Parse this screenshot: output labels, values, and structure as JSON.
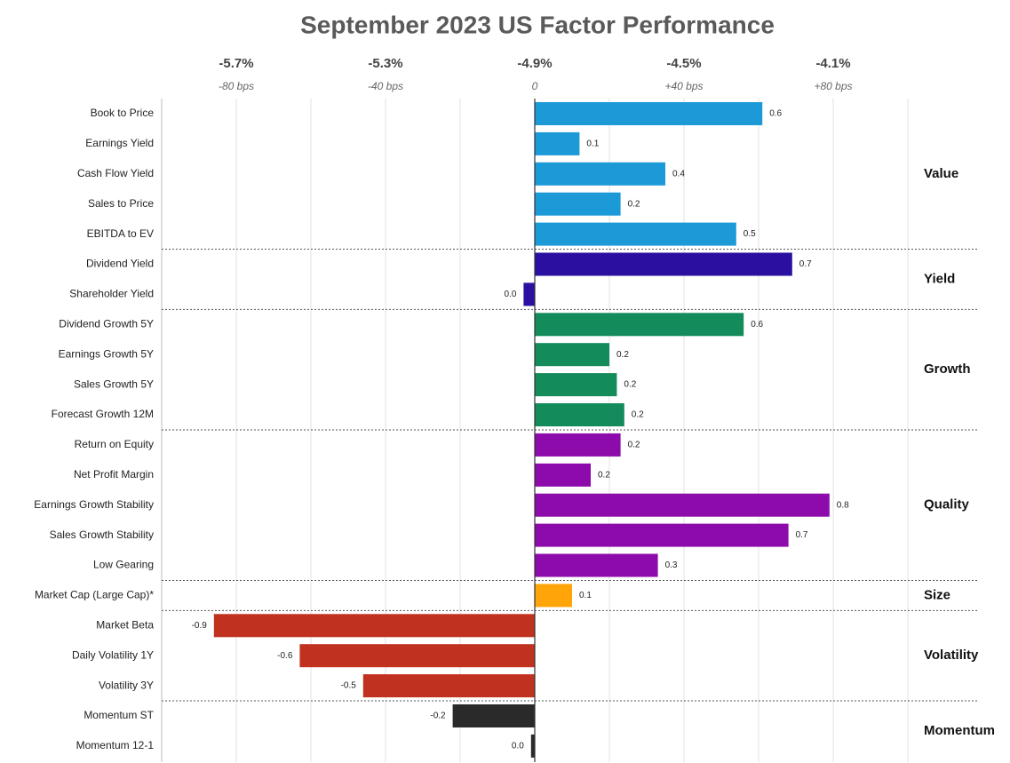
{
  "chart_data": {
    "type": "bar",
    "orientation": "horizontal",
    "title": "September 2023 US Factor Performance",
    "series": [
      {
        "name": "Value",
        "color": "#1b9ad7",
        "categories": [
          "Book to Price",
          "Earnings Yield",
          "Cash Flow Yield",
          "Sales to Price",
          "EBITDA to EV"
        ],
        "values": [
          61,
          12,
          35,
          23,
          54
        ],
        "value_labels": [
          "0.6",
          "0.1",
          "0.4",
          "0.2",
          "0.5"
        ]
      },
      {
        "name": "Yield",
        "color": "#2b0fa0",
        "categories": [
          "Dividend Yield",
          "Shareholder Yield"
        ],
        "values": [
          69,
          -3
        ],
        "value_labels": [
          "0.7",
          "0.0"
        ]
      },
      {
        "name": "Growth",
        "color": "#138b5b",
        "categories": [
          "Dividend Growth 5Y",
          "Earnings Growth 5Y",
          "Sales Growth 5Y",
          "Forecast Growth 12M"
        ],
        "values": [
          56,
          20,
          22,
          24
        ],
        "value_labels": [
          "0.6",
          "0.2",
          "0.2",
          "0.2"
        ]
      },
      {
        "name": "Quality",
        "color": "#8d0bab",
        "categories": [
          "Return on Equity",
          "Net Profit Margin",
          "Earnings Growth Stability",
          "Sales Growth Stability",
          "Low Gearing"
        ],
        "values": [
          23,
          15,
          79,
          68,
          33
        ],
        "value_labels": [
          "0.2",
          "0.2",
          "0.8",
          "0.7",
          "0.3"
        ]
      },
      {
        "name": "Size",
        "color": "#ffa50a",
        "categories": [
          "Market Cap (Large Cap)*"
        ],
        "values": [
          10
        ],
        "value_labels": [
          "0.1"
        ]
      },
      {
        "name": "Volatility",
        "color": "#c0321f",
        "categories": [
          "Market Beta",
          "Daily Volatility 1Y",
          "Volatility 3Y"
        ],
        "values": [
          -86,
          -63,
          -46
        ],
        "value_labels": [
          "-0.9",
          "-0.6",
          "-0.5"
        ]
      },
      {
        "name": "Momentum",
        "color": "#2a2a2a",
        "categories": [
          "Momentum ST",
          "Momentum 12-1"
        ],
        "values": [
          -22,
          -1
        ],
        "value_labels": [
          "-0.2",
          "0.0"
        ]
      }
    ],
    "xlim": [
      -100,
      100
    ],
    "xticks": [
      {
        "value": -80,
        "label": "-80 bps"
      },
      {
        "value": -40,
        "label": "-40 bps"
      },
      0,
      {
        "value": 40,
        "label": "+40 bps"
      },
      {
        "value": 80,
        "label": "+80 bps"
      }
    ],
    "xminorticks": [
      -100,
      -60,
      -20,
      20,
      60,
      100
    ],
    "x2lim": [
      -5.9,
      -3.9
    ],
    "x2ticks": [
      {
        "value": -5.7,
        "label": "-5.7%"
      },
      {
        "value": -5.3,
        "label": "-5.3%"
      },
      {
        "value": -4.9,
        "label": "-4.9%"
      },
      {
        "value": -4.5,
        "label": "-4.5%"
      },
      {
        "value": -4.1,
        "label": "-4.1%"
      }
    ],
    "grid": true
  }
}
